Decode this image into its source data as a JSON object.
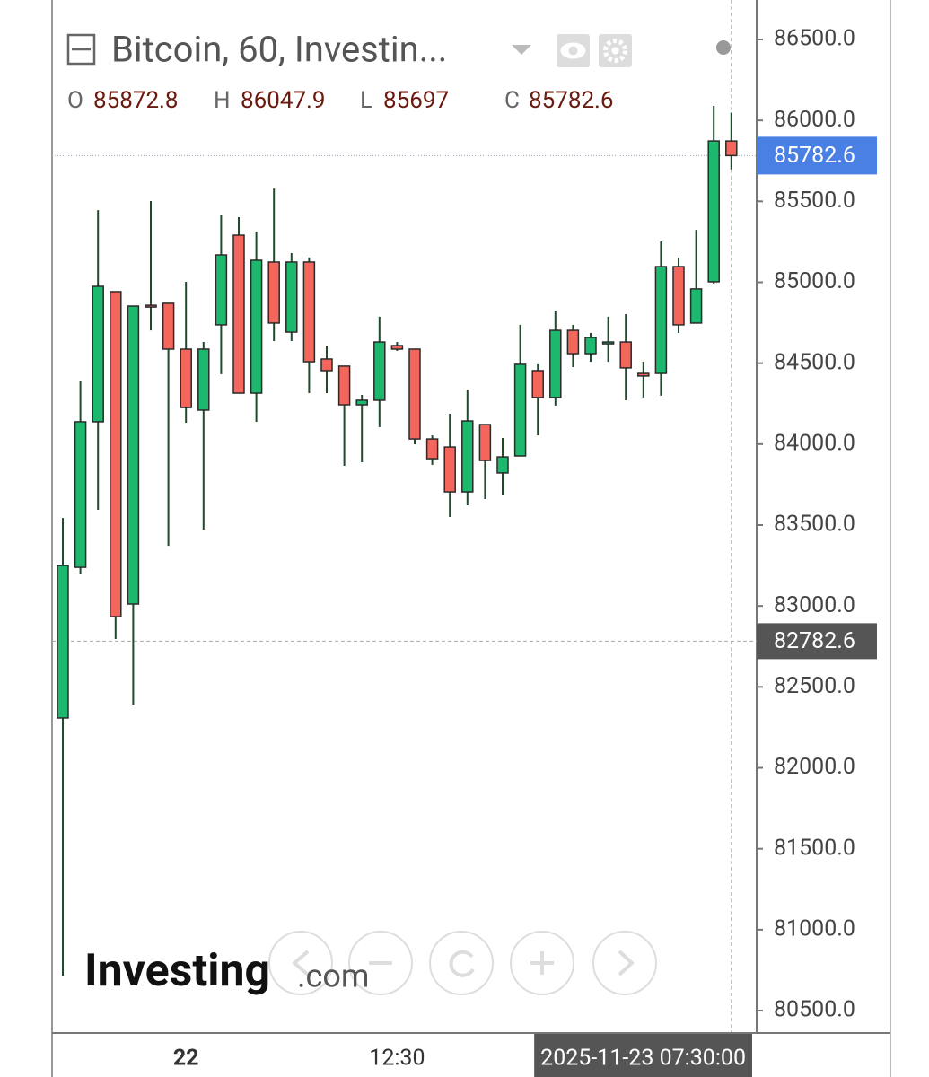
{
  "header": {
    "title": "Bitcoin, 60, Investin...",
    "ohlc": [
      {
        "label": "O",
        "value": 85872.8
      },
      {
        "label": "H",
        "value": 86047.9
      },
      {
        "label": "L",
        "value": 85697.0
      },
      {
        "label": "C",
        "value": 85782.6
      }
    ]
  },
  "watermark": {
    "brand": "Investing",
    "suffix": ".com"
  },
  "chart_data": {
    "type": "candlestick",
    "categories": [
      null,
      null,
      null,
      null,
      null,
      null,
      null,
      "22",
      null,
      null,
      null,
      null,
      null,
      null,
      null,
      null,
      null,
      null,
      null,
      "12:30",
      null,
      null,
      null,
      null,
      null,
      null,
      null,
      null,
      null,
      null,
      null,
      null,
      null,
      null,
      null,
      null,
      null,
      null,
      "2025-11-23 07:30:00"
    ],
    "open": [
      82308,
      83239,
      84138,
      84942,
      83012,
      84858,
      84870,
      84587,
      84210,
      84737,
      85291,
      84315,
      85125,
      84692,
      85125,
      84526,
      84482,
      84243,
      84271,
      84609,
      84587,
      84032,
      83982,
      83705,
      84121,
      83822,
      83927,
      84454,
      84288,
      84703,
      84559,
      84631,
      84631,
      84437,
      84437,
      85097,
      84748,
      85003,
      85872.8
    ],
    "high": [
      83544,
      84393,
      85446,
      84942,
      84853,
      85502,
      84870,
      85003,
      84631,
      85413,
      85402,
      85313,
      85579,
      85180,
      85153,
      84604,
      84482,
      84304,
      84787,
      84631,
      84587,
      84054,
      84188,
      84332,
      84121,
      84038,
      84737,
      84493,
      84825,
      84737,
      84687,
      84787,
      84803,
      84509,
      85252,
      85153,
      85324,
      86090,
      86047.9
    ],
    "low": [
      80716,
      83195,
      83594,
      82796,
      82391,
      84703,
      83372,
      84132,
      83472,
      84432,
      84315,
      84138,
      84637,
      84637,
      84315,
      84315,
      83866,
      83888,
      84105,
      84576,
      83999,
      83872,
      83550,
      83622,
      83661,
      83683,
      83927,
      84054,
      84238,
      84476,
      84509,
      84509,
      84271,
      84288,
      84299,
      84687,
      84748,
      84992,
      85697
    ],
    "close": [
      83250,
      84138,
      84975,
      82934,
      84853,
      84853,
      84587,
      84226,
      84587,
      85169,
      84315,
      85136,
      84748,
      85125,
      84509,
      84454,
      84243,
      84271,
      84631,
      84587,
      84032,
      83910,
      83705,
      84143,
      83899,
      83921,
      84493,
      84288,
      84703,
      84559,
      84659,
      84631,
      84471,
      84421,
      85097,
      84737,
      84959,
      85873,
      85782.6
    ],
    "up_color": "#1cb86e",
    "down_color": "#f4665b",
    "ylim": [
      80367,
      86744
    ],
    "yticks": [
      {
        "value": 80500,
        "label": "80500.0"
      },
      {
        "value": 81000,
        "label": "81000.0"
      },
      {
        "value": 81500,
        "label": "81500.0"
      },
      {
        "value": 82000,
        "label": "82000.0"
      },
      {
        "value": 82500,
        "label": "82500.0"
      },
      {
        "value": 83000,
        "label": "83000.0"
      },
      {
        "value": 83500,
        "label": "83500.0"
      },
      {
        "value": 84000,
        "label": "84000.0"
      },
      {
        "value": 84500,
        "label": "84500.0"
      },
      {
        "value": 85000,
        "label": "85000.0"
      },
      {
        "value": 85500,
        "label": "85500.0"
      },
      {
        "value": 86000,
        "label": "86000.0"
      },
      {
        "value": 86500,
        "label": "86500.0"
      }
    ],
    "last_price": {
      "value": 85782.6,
      "color": "#4a7fe3"
    },
    "crosshair": {
      "x": "2025-11-23 07:30:00",
      "y": 82782.6,
      "color": "#555555"
    }
  }
}
